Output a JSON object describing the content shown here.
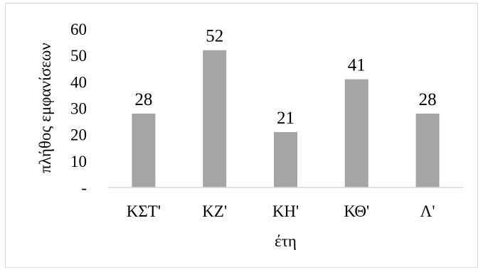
{
  "chart_data": {
    "type": "bar",
    "title": "",
    "categories": [
      "ΚΣΤ'",
      "ΚΖ'",
      "ΚΗ'",
      "ΚΘ'",
      "Λ'"
    ],
    "values": [
      28,
      52,
      21,
      41,
      28
    ],
    "data_labels": [
      "28",
      "52",
      "21",
      "41",
      "28"
    ],
    "xlabel": "έτη",
    "ylabel": "πλήθος εμφανίσεων",
    "ylim": [
      0,
      60
    ],
    "yticks": [
      {
        "value": 0,
        "label": "-"
      },
      {
        "value": 10,
        "label": "10"
      },
      {
        "value": 20,
        "label": "20"
      },
      {
        "value": 30,
        "label": "30"
      },
      {
        "value": 40,
        "label": "40"
      },
      {
        "value": 50,
        "label": "50"
      },
      {
        "value": 60,
        "label": "60"
      }
    ],
    "grid": false,
    "legend": "none",
    "colors": {
      "bar": "#a5a5a5",
      "axis": "#d9d9d9",
      "frame": "#d9d9d9"
    }
  }
}
